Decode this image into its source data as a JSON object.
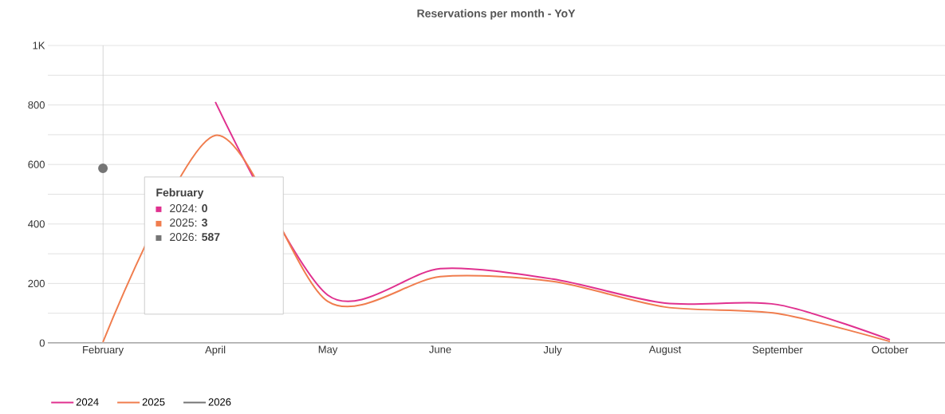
{
  "chart_data": {
    "type": "line",
    "title": "Reservations per month - YoY",
    "categories": [
      "February",
      "April",
      "May",
      "June",
      "July",
      "August",
      "September",
      "October"
    ],
    "series": [
      {
        "name": "2024",
        "color": "#e0318f",
        "values": [
          null,
          810,
          161,
          250,
          215,
          134,
          129,
          11
        ]
      },
      {
        "name": "2025",
        "color": "#f07d4e",
        "values": [
          3,
          698,
          140,
          223,
          207,
          121,
          99,
          5
        ]
      },
      {
        "name": "2026",
        "color": "#757575",
        "marker": "circle",
        "values": [
          587,
          null,
          null,
          null,
          null,
          null,
          null,
          null
        ]
      }
    ],
    "ylim": [
      0,
      1000
    ],
    "yticks": [
      0,
      {
        "value": 100,
        "label": null
      },
      200,
      {
        "value": 300,
        "label": null
      },
      400,
      {
        "value": 500,
        "label": null
      },
      600,
      {
        "value": 700,
        "label": null
      },
      800,
      {
        "value": 900,
        "label": null
      },
      {
        "value": 1000,
        "label": "1K"
      }
    ],
    "grid": "y",
    "legend": "bottom left",
    "ref_lines": [
      {
        "axis": "x",
        "value": "February",
        "color": "#cccccc"
      }
    ],
    "annotations": [
      "February",
      "2024: **0**",
      "2025: **3**",
      "2026: **587**"
    ]
  }
}
